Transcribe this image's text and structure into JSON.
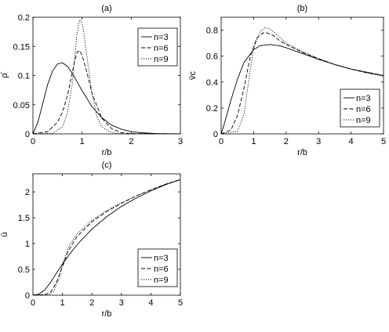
{
  "chart_data": [
    {
      "panel": "(a)",
      "type": "line",
      "title": "(a)",
      "xlabel": "r/b",
      "ylabel": "ρ̄",
      "xlim": [
        0,
        3
      ],
      "ylim": [
        0,
        0.2
      ],
      "x_ticks": [
        "0",
        "1",
        "2",
        "3"
      ],
      "y_ticks": [
        "0",
        "0.05",
        "0.1",
        "0.15",
        "0.2"
      ],
      "legend_position": "top-right",
      "series": [
        {
          "name": "n=3",
          "style": "solid",
          "x": [
            0,
            0.1,
            0.2,
            0.3,
            0.4,
            0.5,
            0.6,
            0.7,
            0.8,
            0.9,
            1.0,
            1.2,
            1.4,
            1.6,
            1.8,
            2.0,
            2.2,
            2.5,
            3.0
          ],
          "y": [
            0,
            0.02,
            0.052,
            0.085,
            0.108,
            0.12,
            0.122,
            0.116,
            0.104,
            0.089,
            0.074,
            0.047,
            0.028,
            0.015,
            0.008,
            0.004,
            0.002,
            0.0005,
            0
          ]
        },
        {
          "name": "n=6",
          "style": "dashed",
          "x": [
            0,
            0.3,
            0.5,
            0.6,
            0.7,
            0.8,
            0.85,
            0.9,
            0.95,
            1.0,
            1.1,
            1.2,
            1.4,
            1.6,
            1.8,
            2.0,
            3.0
          ],
          "y": [
            0,
            0.004,
            0.02,
            0.037,
            0.065,
            0.105,
            0.126,
            0.14,
            0.143,
            0.135,
            0.105,
            0.07,
            0.027,
            0.009,
            0.002,
            0.0005,
            0
          ]
        },
        {
          "name": "n=9",
          "style": "dotted",
          "x": [
            0,
            0.4,
            0.6,
            0.7,
            0.8,
            0.85,
            0.9,
            0.95,
            1.0,
            1.05,
            1.1,
            1.2,
            1.3,
            1.4,
            1.6,
            1.8,
            3.0
          ],
          "y": [
            0,
            0.001,
            0.012,
            0.035,
            0.085,
            0.13,
            0.175,
            0.196,
            0.19,
            0.165,
            0.132,
            0.07,
            0.03,
            0.012,
            0.002,
            0.0003,
            0
          ]
        }
      ]
    },
    {
      "panel": "(b)",
      "type": "line",
      "title": "(b)",
      "xlabel": "r/b",
      "ylabel": "v̄c",
      "xlim": [
        0,
        5
      ],
      "ylim": [
        0,
        0.9
      ],
      "x_ticks": [
        "0",
        "1",
        "2",
        "3",
        "4",
        "5"
      ],
      "y_ticks": [
        "0",
        "0.2",
        "0.4",
        "0.6",
        "0.8"
      ],
      "legend_position": "right",
      "series": [
        {
          "name": "n=3",
          "style": "solid",
          "x": [
            0,
            0.1,
            0.2,
            0.3,
            0.5,
            0.7,
            1.0,
            1.2,
            1.5,
            1.8,
            2.0,
            2.5,
            3.0,
            3.5,
            4.0,
            4.5,
            5.0
          ],
          "y": [
            0,
            0.08,
            0.17,
            0.26,
            0.42,
            0.55,
            0.65,
            0.68,
            0.69,
            0.68,
            0.665,
            0.62,
            0.575,
            0.535,
            0.5,
            0.475,
            0.45
          ]
        },
        {
          "name": "n=6",
          "style": "dashed",
          "x": [
            0,
            0.3,
            0.5,
            0.7,
            0.9,
            1.1,
            1.3,
            1.4,
            1.6,
            1.8,
            2.0,
            2.5,
            3.0,
            3.5,
            4.0,
            4.5,
            5.0
          ],
          "y": [
            0,
            0.03,
            0.14,
            0.35,
            0.6,
            0.74,
            0.78,
            0.78,
            0.76,
            0.72,
            0.69,
            0.63,
            0.58,
            0.535,
            0.5,
            0.47,
            0.45
          ]
        },
        {
          "name": "n=9",
          "style": "dotted",
          "x": [
            0,
            0.5,
            0.7,
            0.9,
            1.0,
            1.2,
            1.35,
            1.5,
            1.7,
            2.0,
            2.5,
            3.0,
            3.5,
            4.0,
            4.5,
            5.0
          ],
          "y": [
            0,
            0.02,
            0.15,
            0.5,
            0.66,
            0.79,
            0.82,
            0.81,
            0.77,
            0.7,
            0.635,
            0.58,
            0.535,
            0.5,
            0.47,
            0.445
          ]
        }
      ]
    },
    {
      "panel": "(c)",
      "type": "line",
      "title": "(c)",
      "xlabel": "r/b",
      "ylabel": "ū",
      "xlim": [
        0,
        5
      ],
      "ylim": [
        0,
        2.35
      ],
      "x_ticks": [
        "0",
        "1",
        "2",
        "3",
        "4",
        "5"
      ],
      "y_ticks": [
        "0",
        "0.5",
        "1",
        "1.5",
        "2"
      ],
      "legend_position": "bottom-right",
      "series": [
        {
          "name": "n=3",
          "style": "solid",
          "x": [
            0,
            0.2,
            0.4,
            0.6,
            0.8,
            1.0,
            1.2,
            1.5,
            2.0,
            2.5,
            3.0,
            3.5,
            4.0,
            4.5,
            5.0
          ],
          "y": [
            0,
            0.02,
            0.1,
            0.25,
            0.43,
            0.6,
            0.76,
            0.98,
            1.28,
            1.52,
            1.72,
            1.88,
            2.02,
            2.14,
            2.24
          ]
        },
        {
          "name": "n=6",
          "style": "dashed",
          "x": [
            0,
            0.4,
            0.6,
            0.8,
            1.0,
            1.2,
            1.5,
            2.0,
            2.5,
            3.0,
            3.5,
            4.0,
            4.5,
            5.0
          ],
          "y": [
            0,
            0.01,
            0.06,
            0.25,
            0.55,
            0.86,
            1.14,
            1.42,
            1.62,
            1.78,
            1.92,
            2.04,
            2.15,
            2.24
          ]
        },
        {
          "name": "n=9",
          "style": "dotted",
          "x": [
            0,
            0.5,
            0.7,
            0.9,
            1.0,
            1.2,
            1.5,
            2.0,
            2.5,
            3.0,
            3.5,
            4.0,
            4.5,
            5.0
          ],
          "y": [
            0,
            0.005,
            0.07,
            0.35,
            0.6,
            0.93,
            1.19,
            1.45,
            1.64,
            1.79,
            1.92,
            2.04,
            2.15,
            2.23
          ]
        }
      ]
    }
  ]
}
